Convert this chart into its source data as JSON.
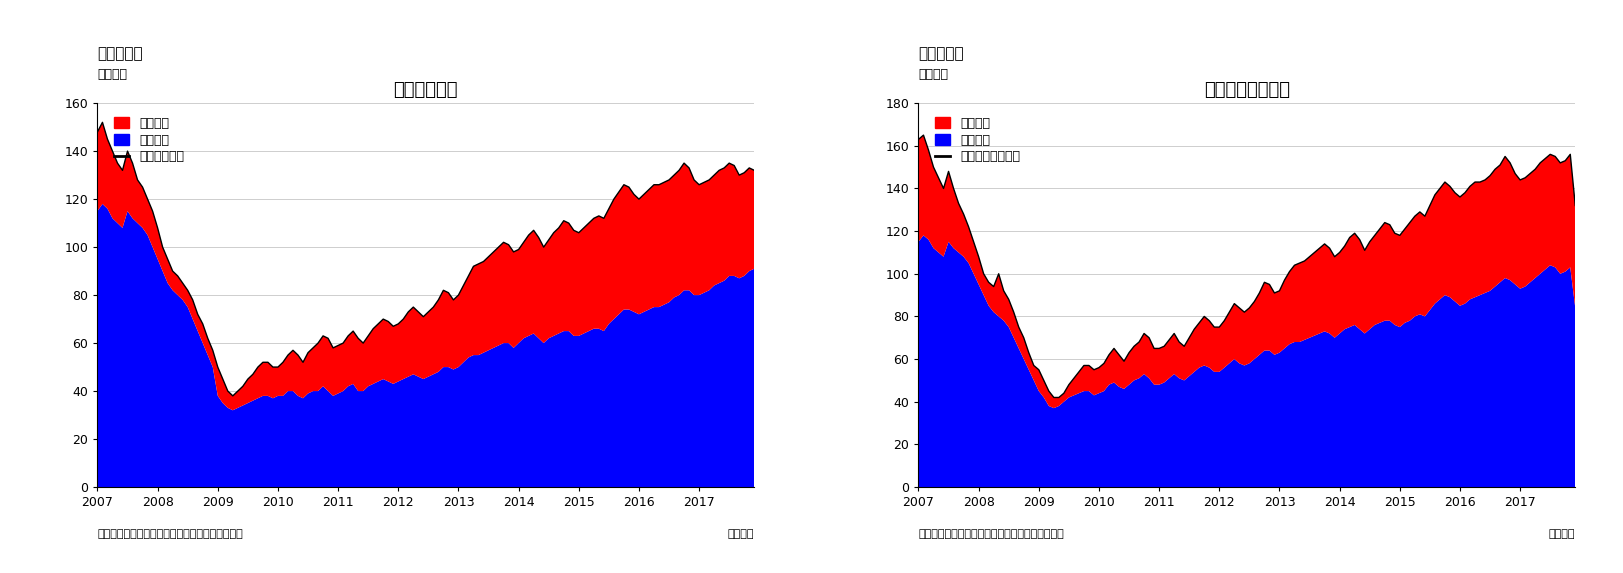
{
  "chart1": {
    "title": "住宅着工件数",
    "fig_label": "（図表１）",
    "ylabel": "（万件）",
    "xlabel": "（月次）",
    "source": "（資料）センサス局よりニッセイ基礎研究所作成",
    "ylim": [
      0,
      160
    ],
    "yticks": [
      0,
      20,
      40,
      60,
      80,
      100,
      120,
      140,
      160
    ],
    "legend_line": "住宅着工件数",
    "legend_red": "集合住宅",
    "legend_blue": "一戸建て",
    "color_red": "#FF0000",
    "color_blue": "#0000FF",
    "color_line": "#000000"
  },
  "chart2": {
    "title": "住宅着工許可件数",
    "fig_label": "（図表２）",
    "ylabel": "（万件）",
    "xlabel": "（月次）",
    "source": "（資料）センサス局よりニッセイ基礎研究所作成",
    "ylim": [
      0,
      180
    ],
    "yticks": [
      0,
      20,
      40,
      60,
      80,
      100,
      120,
      140,
      160,
      180
    ],
    "legend_line": "住宅建築許可件数",
    "legend_red": "集合住宅",
    "legend_blue": "一戸建て",
    "color_red": "#FF0000",
    "color_blue": "#0000FF",
    "color_line": "#000000"
  },
  "xtick_years": [
    2007,
    2008,
    2009,
    2010,
    2011,
    2012,
    2013,
    2014,
    2015,
    2016,
    2017
  ],
  "background_color": "#FFFFFF",
  "grid_color": "#BBBBBB",
  "title_fontsize": 13,
  "label_fontsize": 9,
  "legend_fontsize": 9
}
